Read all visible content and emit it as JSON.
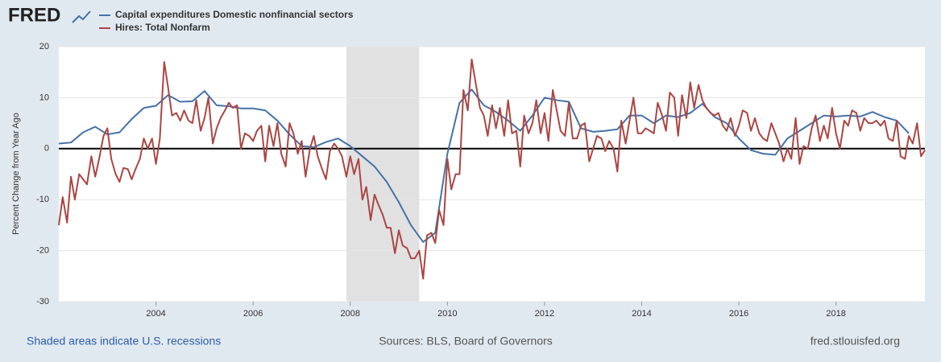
{
  "logo": "FRED",
  "chart_data": {
    "type": "line",
    "ylabel": "Percent Change from Year Ago",
    "xlim": [
      2002,
      2019.83
    ],
    "xticks": [
      2004,
      2006,
      2008,
      2010,
      2012,
      2014,
      2016,
      2018
    ],
    "ylim": [
      -30,
      20
    ],
    "yticks": [
      -30,
      -20,
      -10,
      0,
      10,
      20
    ],
    "grid": true,
    "recessions": [
      {
        "start": 2007.92,
        "end": 2009.42
      }
    ],
    "series": [
      {
        "name": "Capital expenditures Domestic nonfinancial sectors",
        "color": "#4572a7",
        "x": [
          2002,
          2002.25,
          2002.5,
          2002.75,
          2003,
          2003.25,
          2003.5,
          2003.75,
          2004,
          2004.25,
          2004.5,
          2004.75,
          2005,
          2005.25,
          2005.5,
          2005.75,
          2006,
          2006.25,
          2006.5,
          2006.75,
          2007,
          2007.25,
          2007.5,
          2007.75,
          2008,
          2008.25,
          2008.5,
          2008.75,
          2009,
          2009.25,
          2009.5,
          2009.75,
          2010,
          2010.25,
          2010.5,
          2010.75,
          2011,
          2011.25,
          2011.5,
          2011.75,
          2012,
          2012.25,
          2012.5,
          2012.75,
          2013,
          2013.25,
          2013.5,
          2013.75,
          2014,
          2014.25,
          2014.5,
          2014.75,
          2015,
          2015.25,
          2015.5,
          2015.75,
          2016,
          2016.25,
          2016.5,
          2016.75,
          2017,
          2017.25,
          2017.5,
          2017.75,
          2018,
          2018.25,
          2018.5,
          2018.75,
          2019,
          2019.25,
          2019.5
        ],
        "values": [
          1,
          1.2,
          3.2,
          4.3,
          2.8,
          3.2,
          5.8,
          8,
          8.4,
          10.5,
          9.2,
          9.3,
          11.3,
          8.5,
          8.3,
          7.9,
          7.9,
          7.5,
          5.5,
          2.8,
          0.5,
          0.3,
          1.3,
          2,
          0.5,
          -1.5,
          -3.5,
          -6.5,
          -10.5,
          -15,
          -18.3,
          -16.5,
          -1,
          9,
          11.6,
          8.5,
          7.2,
          5.5,
          3.5,
          6.5,
          10,
          9.5,
          9.2,
          4,
          3.3,
          3.5,
          3.8,
          6.5,
          6.5,
          5,
          6.5,
          6.2,
          7,
          8.8,
          6.2,
          5,
          2,
          -0.3,
          -1,
          -1.2,
          2,
          3.5,
          5,
          6.5,
          6.3,
          6.5,
          6.3,
          7.2,
          6.2,
          5.5,
          3
        ]
      },
      {
        "name": "Hires: Total Nonfarm",
        "color": "#aa4643",
        "x": [
          2002,
          2002.08,
          2002.17,
          2002.25,
          2002.33,
          2002.42,
          2002.5,
          2002.58,
          2002.67,
          2002.75,
          2002.83,
          2002.92,
          2003,
          2003.08,
          2003.17,
          2003.25,
          2003.33,
          2003.42,
          2003.5,
          2003.58,
          2003.67,
          2003.75,
          2003.83,
          2003.92,
          2004,
          2004.08,
          2004.17,
          2004.25,
          2004.33,
          2004.42,
          2004.5,
          2004.58,
          2004.67,
          2004.75,
          2004.83,
          2004.92,
          2005,
          2005.08,
          2005.17,
          2005.25,
          2005.33,
          2005.42,
          2005.5,
          2005.58,
          2005.67,
          2005.75,
          2005.83,
          2005.92,
          2006,
          2006.08,
          2006.17,
          2006.25,
          2006.33,
          2006.42,
          2006.5,
          2006.58,
          2006.67,
          2006.75,
          2006.83,
          2006.92,
          2007,
          2007.08,
          2007.17,
          2007.25,
          2007.33,
          2007.42,
          2007.5,
          2007.58,
          2007.67,
          2007.75,
          2007.83,
          2007.92,
          2008,
          2008.08,
          2008.17,
          2008.25,
          2008.33,
          2008.42,
          2008.5,
          2008.58,
          2008.67,
          2008.75,
          2008.83,
          2008.92,
          2009,
          2009.08,
          2009.17,
          2009.25,
          2009.33,
          2009.42,
          2009.5,
          2009.58,
          2009.67,
          2009.75,
          2009.83,
          2009.92,
          2010,
          2010.08,
          2010.17,
          2010.25,
          2010.33,
          2010.42,
          2010.5,
          2010.58,
          2010.67,
          2010.75,
          2010.83,
          2010.92,
          2011,
          2011.08,
          2011.17,
          2011.25,
          2011.33,
          2011.42,
          2011.5,
          2011.58,
          2011.67,
          2011.75,
          2011.83,
          2011.92,
          2012,
          2012.08,
          2012.17,
          2012.25,
          2012.33,
          2012.42,
          2012.5,
          2012.58,
          2012.67,
          2012.75,
          2012.83,
          2012.92,
          2013,
          2013.08,
          2013.17,
          2013.25,
          2013.33,
          2013.42,
          2013.5,
          2013.58,
          2013.67,
          2013.75,
          2013.83,
          2013.92,
          2014,
          2014.08,
          2014.17,
          2014.25,
          2014.33,
          2014.42,
          2014.5,
          2014.58,
          2014.67,
          2014.75,
          2014.83,
          2014.92,
          2015,
          2015.08,
          2015.17,
          2015.25,
          2015.33,
          2015.42,
          2015.5,
          2015.58,
          2015.67,
          2015.75,
          2015.83,
          2015.92,
          2016,
          2016.08,
          2016.17,
          2016.25,
          2016.33,
          2016.42,
          2016.5,
          2016.58,
          2016.67,
          2016.75,
          2016.83,
          2016.92,
          2017,
          2017.08,
          2017.17,
          2017.25,
          2017.33,
          2017.42,
          2017.5,
          2017.58,
          2017.67,
          2017.75,
          2017.83,
          2017.92,
          2018,
          2018.08,
          2018.17,
          2018.25,
          2018.33,
          2018.42,
          2018.5,
          2018.58,
          2018.67,
          2018.75,
          2018.83,
          2018.92,
          2019,
          2019.08,
          2019.17,
          2019.25,
          2019.33,
          2019.42,
          2019.5,
          2019.58,
          2019.67,
          2019.75,
          2019.83
        ],
        "values": [
          -15,
          -9.5,
          -14.5,
          -5.5,
          -10,
          -5,
          -6,
          -7,
          -1.5,
          -5.5,
          -2,
          2.5,
          4,
          -2,
          -5,
          -6.5,
          -3.8,
          -4,
          -6,
          -4,
          -2,
          2,
          0,
          2,
          -3,
          2,
          17,
          12,
          6.5,
          7,
          5.5,
          7.5,
          5.5,
          5,
          9.5,
          3.5,
          6,
          10,
          1,
          4,
          6,
          7.5,
          9,
          8,
          8.5,
          0,
          3,
          2.5,
          1.5,
          3.5,
          4.5,
          -2.5,
          4.5,
          0.5,
          5,
          -1,
          -3.5,
          5,
          3,
          -1,
          1.5,
          -5.5,
          0,
          2.5,
          -1.5,
          -4,
          -6,
          -0.5,
          1,
          0,
          -1.5,
          -5.5,
          -1.5,
          -5,
          -2,
          -10,
          -7.5,
          -14,
          -9,
          -11,
          -13,
          -15.5,
          -15.5,
          -20.5,
          -16,
          -19,
          -19.5,
          -21.5,
          -21.5,
          -20,
          -25.5,
          -17,
          -16.5,
          -18.5,
          -12,
          -15,
          -2,
          -8,
          -5,
          -5,
          11.5,
          7.5,
          17.5,
          13,
          8,
          6.5,
          2.5,
          8.5,
          4,
          8,
          2.5,
          9.5,
          3,
          3.5,
          -3.5,
          6.5,
          3,
          5,
          9.5,
          3,
          7,
          1.5,
          11.5,
          7.5,
          3.5,
          2.5,
          9,
          2,
          2,
          4.5,
          5,
          -2.5,
          0,
          2.5,
          2,
          -0.5,
          1.5,
          0,
          -4.5,
          5.5,
          1,
          5.5,
          10,
          3,
          3,
          4,
          3.5,
          3,
          9,
          6.5,
          3.5,
          11,
          10,
          2.5,
          10.5,
          6,
          13,
          8,
          12.5,
          9.5,
          8,
          7,
          6.5,
          7,
          4.5,
          3.5,
          6,
          2.5,
          4.5,
          7.5,
          7,
          3.5,
          6,
          3,
          2,
          1.5,
          5,
          3,
          1,
          -2.5,
          0,
          -2,
          6,
          -3,
          0.5,
          0,
          4,
          6.5,
          1.5,
          4.5,
          2,
          8,
          3,
          0,
          5.5,
          4.5,
          7.5,
          7,
          3.5,
          6,
          5,
          5,
          5.5,
          4.5,
          5.5,
          2,
          1.5,
          5.5,
          -1.5,
          -2,
          2.5,
          1,
          5,
          -1.5,
          -0.3
        ]
      }
    ]
  },
  "footer": {
    "note": "Shaded areas indicate U.S. recessions",
    "sources": "Sources: BLS, Board of Governors",
    "site": "fred.stlouisfed.org"
  }
}
